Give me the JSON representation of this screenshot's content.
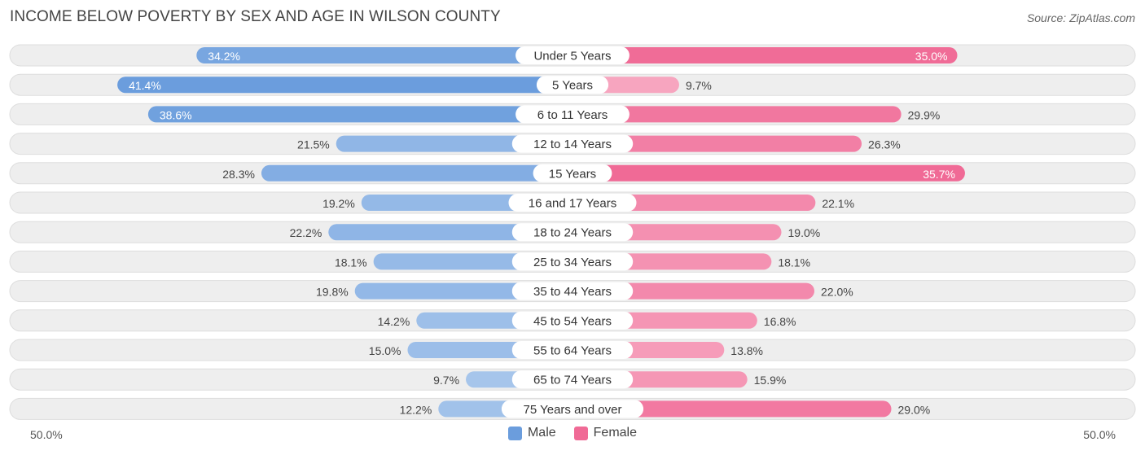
{
  "title": "INCOME BELOW POVERTY BY SEX AND AGE IN WILSON COUNTY",
  "source": "Source: ZipAtlas.com",
  "colors": {
    "male_dark": "#6b9ddd",
    "male_light": "#a9c7ec",
    "female_dark": "#f06a96",
    "female_light": "#f7a9c2",
    "track": "#eeeeee",
    "track_border": "#dddddd"
  },
  "chart_data": {
    "type": "bar",
    "orientation": "horizontal-diverging",
    "title": "INCOME BELOW POVERTY BY SEX AND AGE IN WILSON COUNTY",
    "categories": [
      "Under 5 Years",
      "5 Years",
      "6 to 11 Years",
      "12 to 14 Years",
      "15 Years",
      "16 and 17 Years",
      "18 to 24 Years",
      "25 to 34 Years",
      "35 to 44 Years",
      "45 to 54 Years",
      "55 to 64 Years",
      "65 to 74 Years",
      "75 Years and over"
    ],
    "series": [
      {
        "name": "Male",
        "values": [
          34.2,
          41.4,
          38.6,
          21.5,
          28.3,
          19.2,
          22.2,
          18.1,
          19.8,
          14.2,
          15.0,
          9.7,
          12.2
        ],
        "labels": [
          "34.2%",
          "41.4%",
          "38.6%",
          "21.5%",
          "28.3%",
          "19.2%",
          "22.2%",
          "18.1%",
          "19.8%",
          "14.2%",
          "15.0%",
          "9.7%",
          "12.2%"
        ]
      },
      {
        "name": "Female",
        "values": [
          35.0,
          9.7,
          29.9,
          26.3,
          35.7,
          22.1,
          19.0,
          18.1,
          22.0,
          16.8,
          13.8,
          15.9,
          29.0
        ],
        "labels": [
          "35.0%",
          "9.7%",
          "29.9%",
          "26.3%",
          "35.7%",
          "22.1%",
          "19.0%",
          "18.1%",
          "22.0%",
          "16.8%",
          "13.8%",
          "15.9%",
          "29.0%"
        ]
      }
    ],
    "xlim": [
      -50,
      50
    ],
    "axis_left_label": "50.0%",
    "axis_right_label": "50.0%",
    "legend": [
      "Male",
      "Female"
    ],
    "legend_position": "bottom-center"
  }
}
